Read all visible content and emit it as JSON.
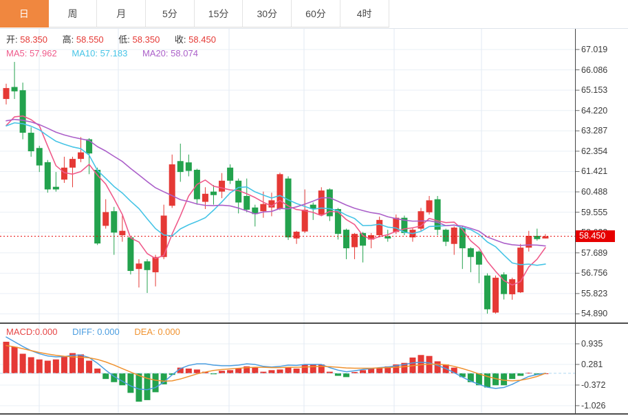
{
  "toolbar": {
    "tabs": [
      {
        "label": "日",
        "active": true
      },
      {
        "label": "周",
        "active": false
      },
      {
        "label": "月",
        "active": false
      },
      {
        "label": "5分",
        "active": false
      },
      {
        "label": "15分",
        "active": false
      },
      {
        "label": "30分",
        "active": false
      },
      {
        "label": "60分",
        "active": false
      },
      {
        "label": "4时",
        "active": false
      }
    ]
  },
  "info": {
    "ohlc": [
      {
        "label": "开:",
        "value": "58.350"
      },
      {
        "label": "高:",
        "value": "58.550"
      },
      {
        "label": "低:",
        "value": "58.350"
      },
      {
        "label": "收:",
        "value": "58.450"
      }
    ],
    "ma": [
      {
        "label": "MA5:",
        "value": "57.962"
      },
      {
        "label": "MA10:",
        "value": "57.183"
      },
      {
        "label": "MA20:",
        "value": "58.074"
      }
    ]
  },
  "macd_info": [
    {
      "label": "MACD:",
      "value": "0.000"
    },
    {
      "label": "DIFF:",
      "value": "0.000"
    },
    {
      "label": "DEA:",
      "value": "0.000"
    }
  ],
  "last_price": {
    "value": "58.450"
  },
  "colors": {
    "bull": "#e53935",
    "bear": "#23a24d",
    "ma5": "#ef5a8a",
    "ma10": "#45c4e6",
    "ma20": "#ab5fc9",
    "diff": "#4a9de0",
    "dea": "#f0922f",
    "active_tab": "#f0873f",
    "price_line": "#e60000",
    "grid": "#e9eff6"
  },
  "chart_data": {
    "type": "candlestick",
    "title": "",
    "legend_position": "top-left-overlay",
    "grid": true,
    "main": {
      "y_ticks": [
        "67.019",
        "66.086",
        "65.153",
        "64.220",
        "63.287",
        "62.354",
        "61.421",
        "60.488",
        "59.555",
        "58.622",
        "57.689",
        "56.756",
        "55.823",
        "54.890"
      ],
      "ylim": [
        54.89,
        67.019
      ],
      "last_price": 58.45,
      "candles_ohlc": [
        [
          64.75,
          65.45,
          64.5,
          65.25
        ],
        [
          65.3,
          66.45,
          64.75,
          65.1
        ],
        [
          65.15,
          65.5,
          62.9,
          63.2
        ],
        [
          63.2,
          63.45,
          62.1,
          62.35
        ],
        [
          62.5,
          62.6,
          61.4,
          61.7
        ],
        [
          61.85,
          61.95,
          60.45,
          60.6
        ],
        [
          60.72,
          61.4,
          60.5,
          60.6
        ],
        [
          61.05,
          62.1,
          60.9,
          61.6
        ],
        [
          61.6,
          62.1,
          60.7,
          62.0
        ],
        [
          62.0,
          63.0,
          61.85,
          62.3
        ],
        [
          62.9,
          62.95,
          61.3,
          62.25
        ],
        [
          61.5,
          61.6,
          58.05,
          58.12
        ],
        [
          58.93,
          60.15,
          58.8,
          59.56
        ],
        [
          59.6,
          59.8,
          57.6,
          58.62
        ],
        [
          58.5,
          59.4,
          58.2,
          58.7
        ],
        [
          58.4,
          58.45,
          56.7,
          56.86
        ],
        [
          56.95,
          57.4,
          56.1,
          57.2
        ],
        [
          57.3,
          57.4,
          55.85,
          56.9
        ],
        [
          56.8,
          57.6,
          56.15,
          57.5
        ],
        [
          57.5,
          59.9,
          57.4,
          59.4
        ],
        [
          59.85,
          62.2,
          59.75,
          61.75
        ],
        [
          61.9,
          62.7,
          60.95,
          61.4
        ],
        [
          61.84,
          62.2,
          61.2,
          61.45
        ],
        [
          61.5,
          61.55,
          59.9,
          60.15
        ],
        [
          60.03,
          60.7,
          59.7,
          60.4
        ],
        [
          60.5,
          60.8,
          59.9,
          60.34
        ],
        [
          60.5,
          61.35,
          60.2,
          61.0
        ],
        [
          61.6,
          61.75,
          60.85,
          61.0
        ],
        [
          61.0,
          61.1,
          59.5,
          60.0
        ],
        [
          60.3,
          61.1,
          59.55,
          59.67
        ],
        [
          59.77,
          59.9,
          58.9,
          59.47
        ],
        [
          59.6,
          60.5,
          59.3,
          59.93
        ],
        [
          59.77,
          60.45,
          59.37,
          60.1
        ],
        [
          59.7,
          61.37,
          59.65,
          61.3
        ],
        [
          61.1,
          61.2,
          58.28,
          58.4
        ],
        [
          58.35,
          58.7,
          58.1,
          58.66
        ],
        [
          58.67,
          60.6,
          58.6,
          59.67
        ],
        [
          59.9,
          60.0,
          59.2,
          59.7
        ],
        [
          59.45,
          60.7,
          59.37,
          60.55
        ],
        [
          60.6,
          60.65,
          59.15,
          59.37
        ],
        [
          59.7,
          59.75,
          58.3,
          58.56
        ],
        [
          58.75,
          58.8,
          57.4,
          57.9
        ],
        [
          57.95,
          58.6,
          57.4,
          58.56
        ],
        [
          58.6,
          58.65,
          57.25,
          58.02
        ],
        [
          58.3,
          58.6,
          57.9,
          58.5
        ],
        [
          58.5,
          59.35,
          58.4,
          59.2
        ],
        [
          58.45,
          58.75,
          58.2,
          58.35
        ],
        [
          58.65,
          59.45,
          58.55,
          59.3
        ],
        [
          59.3,
          59.4,
          58.5,
          58.6
        ],
        [
          58.4,
          58.85,
          58.2,
          58.75
        ],
        [
          58.8,
          59.75,
          58.7,
          59.6
        ],
        [
          59.55,
          60.3,
          59.45,
          60.1
        ],
        [
          60.15,
          60.3,
          58.5,
          58.75
        ],
        [
          58.75,
          58.8,
          58.0,
          58.2
        ],
        [
          58.1,
          58.9,
          57.6,
          58.85
        ],
        [
          58.85,
          58.9,
          56.95,
          57.9
        ],
        [
          57.9,
          57.95,
          56.8,
          57.5
        ],
        [
          57.75,
          57.8,
          56.3,
          57.15
        ],
        [
          56.65,
          56.75,
          54.9,
          55.1
        ],
        [
          54.95,
          56.65,
          54.9,
          56.55
        ],
        [
          56.7,
          56.8,
          55.55,
          55.8
        ],
        [
          55.79,
          56.55,
          55.54,
          56.48
        ],
        [
          55.88,
          58.1,
          55.85,
          57.93
        ],
        [
          57.93,
          58.7,
          57.75,
          58.47
        ],
        [
          58.47,
          58.8,
          58.25,
          58.32
        ],
        [
          58.35,
          58.55,
          58.35,
          58.45
        ]
      ],
      "ma_windows": [
        5,
        10,
        20
      ],
      "ma_seed": [
        63.8,
        64.0,
        63.9,
        64.1,
        64.0,
        64.2,
        64.1,
        64.0,
        63.9,
        63.8,
        63.7,
        63.6,
        63.5,
        63.4,
        63.3,
        63.1,
        63.0,
        63.2,
        63.1
      ]
    },
    "macd": {
      "y_ticks": [
        "0.935",
        "0.281",
        "-0.372",
        "-1.026"
      ],
      "hist": [
        1.0,
        0.84,
        0.62,
        0.51,
        0.44,
        0.4,
        0.44,
        0.52,
        0.64,
        0.6,
        0.4,
        0.15,
        -0.18,
        -0.28,
        -0.38,
        -0.62,
        -0.9,
        -0.85,
        -0.6,
        -0.35,
        -0.05,
        0.18,
        0.15,
        0.12,
        0.05,
        -0.03,
        0.08,
        0.1,
        0.15,
        0.22,
        0.18,
        0.05,
        0.1,
        0.12,
        0.18,
        0.15,
        0.28,
        0.28,
        0.28,
        0.05,
        -0.08,
        -0.12,
        0.04,
        0.1,
        0.15,
        0.18,
        0.22,
        0.28,
        0.33,
        0.5,
        0.58,
        0.55,
        0.38,
        0.28,
        0.18,
        -0.12,
        -0.28,
        -0.38,
        -0.45,
        -0.38,
        -0.38,
        -0.18,
        -0.08,
        0.02,
        -0.04,
        0.0
      ],
      "diff": [
        1.15,
        1.0,
        0.85,
        0.72,
        0.62,
        0.55,
        0.52,
        0.53,
        0.57,
        0.58,
        0.5,
        0.32,
        0.1,
        -0.1,
        -0.25,
        -0.4,
        -0.5,
        -0.52,
        -0.45,
        -0.28,
        -0.05,
        0.15,
        0.25,
        0.3,
        0.3,
        0.26,
        0.24,
        0.24,
        0.26,
        0.3,
        0.28,
        0.22,
        0.2,
        0.22,
        0.26,
        0.25,
        0.28,
        0.28,
        0.28,
        0.18,
        0.1,
        0.05,
        0.08,
        0.12,
        0.15,
        0.18,
        0.2,
        0.24,
        0.28,
        0.33,
        0.35,
        0.33,
        0.25,
        0.15,
        0.02,
        -0.12,
        -0.25,
        -0.35,
        -0.44,
        -0.48,
        -0.45,
        -0.35,
        -0.22,
        -0.1,
        -0.04,
        0.0
      ],
      "dea": [
        0.88,
        0.84,
        0.78,
        0.72,
        0.66,
        0.61,
        0.57,
        0.54,
        0.52,
        0.51,
        0.49,
        0.44,
        0.36,
        0.26,
        0.15,
        0.04,
        -0.07,
        -0.16,
        -0.22,
        -0.25,
        -0.24,
        -0.18,
        -0.1,
        -0.02,
        0.04,
        0.09,
        0.12,
        0.14,
        0.16,
        0.18,
        0.19,
        0.19,
        0.18,
        0.18,
        0.19,
        0.19,
        0.2,
        0.21,
        0.22,
        0.21,
        0.19,
        0.17,
        0.16,
        0.16,
        0.16,
        0.17,
        0.18,
        0.19,
        0.21,
        0.24,
        0.27,
        0.29,
        0.29,
        0.27,
        0.22,
        0.15,
        0.07,
        -0.02,
        -0.1,
        -0.17,
        -0.22,
        -0.24,
        -0.22,
        -0.17,
        -0.1,
        0.0
      ]
    },
    "x_gridlines": [
      57,
      172,
      333,
      442,
      573,
      700
    ]
  }
}
